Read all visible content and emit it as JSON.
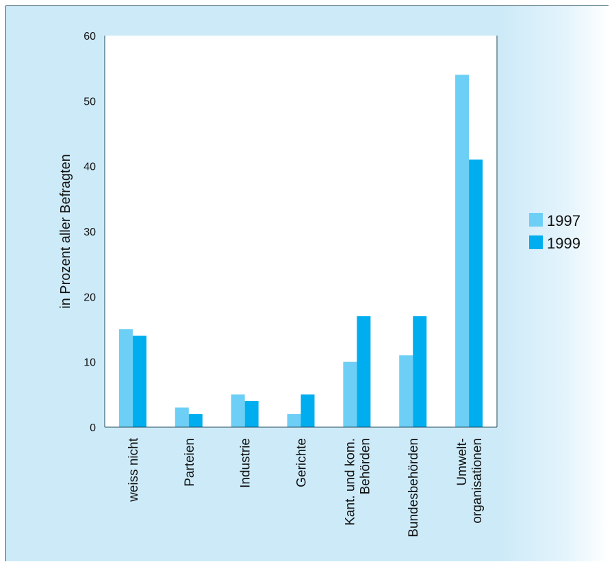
{
  "chart_data": {
    "type": "bar",
    "title": "",
    "xlabel": "",
    "ylabel": "in Prozent aller Befragten",
    "ylim": [
      0,
      60
    ],
    "yticks": [
      "0",
      "10",
      "20",
      "30",
      "40",
      "50",
      "60"
    ],
    "grid": false,
    "legend_position": "right",
    "categories": [
      [
        "weiss nicht"
      ],
      [
        "Parteien"
      ],
      [
        "Industrie"
      ],
      [
        "Gerichte"
      ],
      [
        "Kant. und kom.",
        "Behörden"
      ],
      [
        "Bundesbehörden"
      ],
      [
        "Umwelt-",
        "organisationen"
      ]
    ],
    "series": [
      {
        "name": "1997",
        "color": "#6dcff6",
        "values": [
          15,
          3,
          5,
          2,
          10,
          11,
          54
        ]
      },
      {
        "name": "1999",
        "color": "#00aeef",
        "values": [
          14,
          2,
          4,
          5,
          17,
          17,
          41
        ]
      }
    ]
  },
  "colors": {
    "background": "#cdeaf8",
    "plot_area": "#ffffff",
    "axis": "#1f4a5a"
  }
}
